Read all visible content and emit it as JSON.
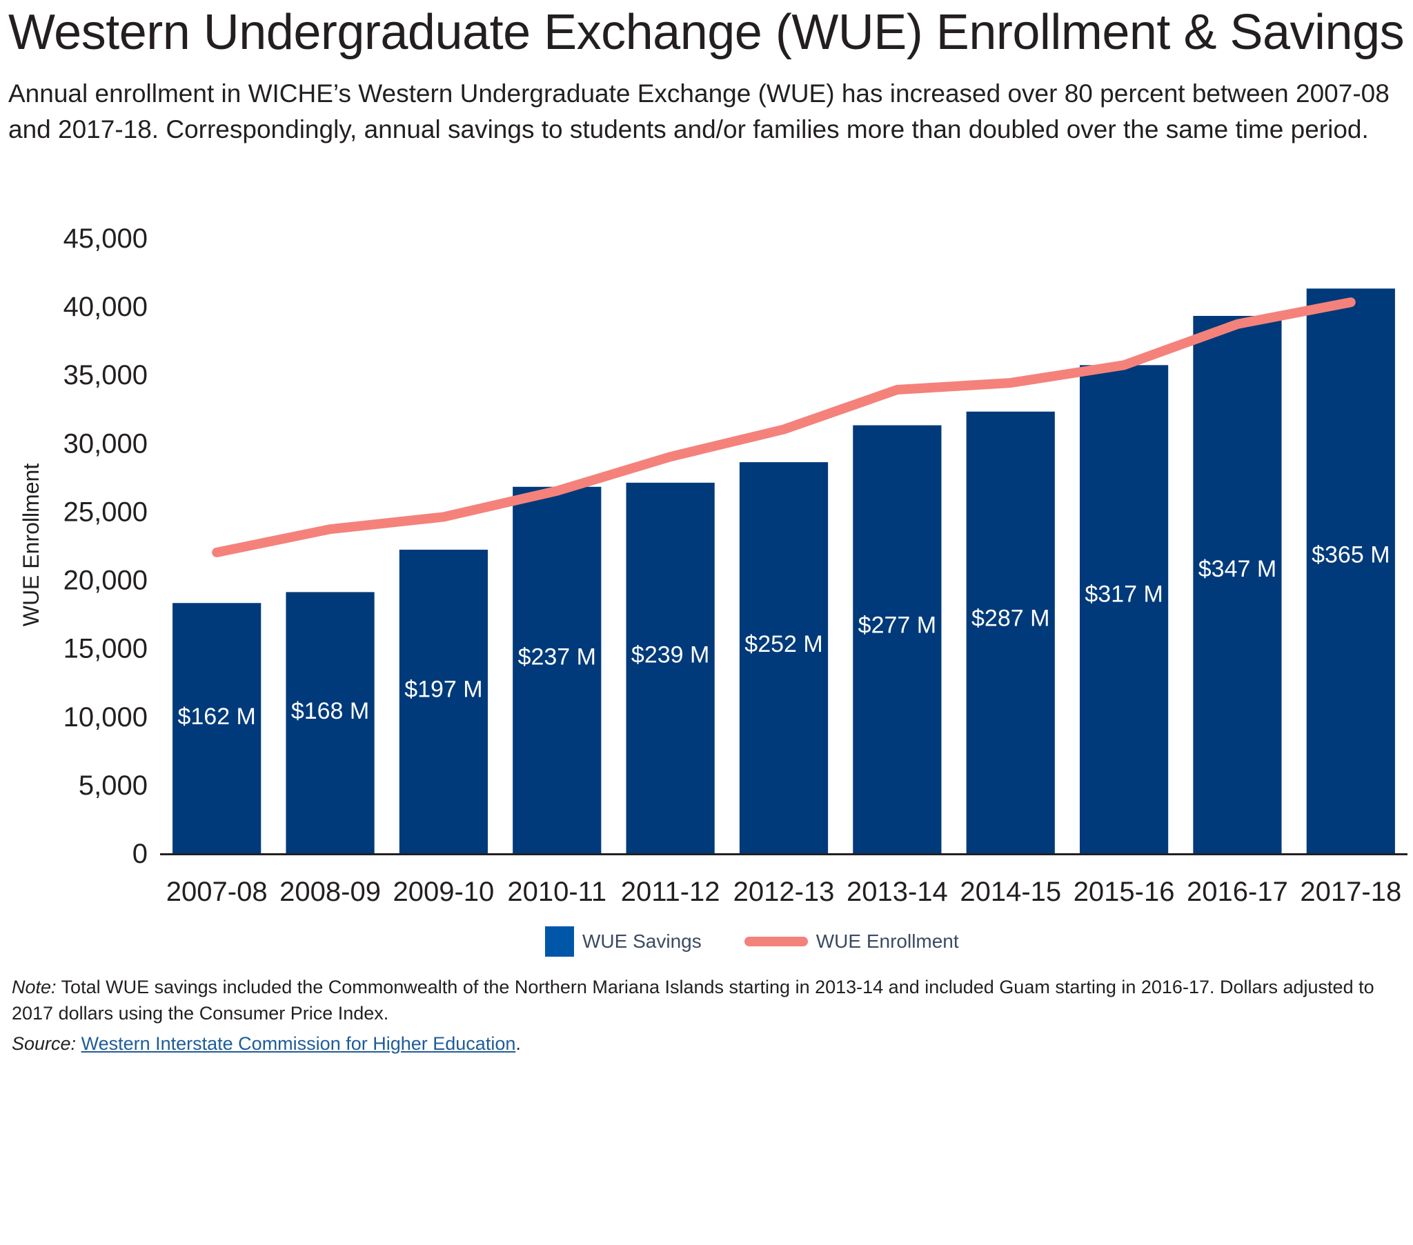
{
  "header": {
    "title": "Western Undergraduate Exchange (WUE) Enrollment & Savings",
    "subtitle": "Annual enrollment in WICHE’s Western Undergraduate Exchange (WUE) has increased over 80 percent between 2007-08 and 2017-18. Correspondingly, annual savings to students and/or families more than doubled over the same time period."
  },
  "chart_data": {
    "type": "bar",
    "categories": [
      "2007-08",
      "2008-09",
      "2009-10",
      "2010-11",
      "2011-12",
      "2012-13",
      "2013-14",
      "2014-15",
      "2015-16",
      "2016-17",
      "2017-18"
    ],
    "series": [
      {
        "name": "WUE Savings",
        "type": "bar",
        "color": "#003a7a",
        "values": [
          18300,
          19100,
          22200,
          26800,
          27100,
          28600,
          31300,
          32300,
          35700,
          39300,
          41300
        ],
        "data_labels": [
          "$162 M",
          "$168 M",
          "$197 M",
          "$237 M",
          "$239 M",
          "$252 M",
          "$277 M",
          "$287 M",
          "$317 M",
          "$347 M",
          "$365 M"
        ]
      },
      {
        "name": "WUE Enrollment",
        "type": "line",
        "color": "#f4827b",
        "values": [
          22000,
          23700,
          24600,
          26500,
          29000,
          31000,
          33900,
          34400,
          35700,
          38700,
          40300
        ]
      }
    ],
    "ylabel": "WUE Enrollment",
    "ylim": [
      0,
      45000
    ],
    "yticks": [
      0,
      5000,
      10000,
      15000,
      20000,
      25000,
      30000,
      35000,
      40000,
      45000
    ],
    "ytick_labels": [
      "0",
      "5,000",
      "10,000",
      "15,000",
      "20,000",
      "25,000",
      "30,000",
      "35,000",
      "40,000",
      "45,000"
    ],
    "legend_position": "bottom-center",
    "grid": false
  },
  "legend": {
    "savings_label": "WUE Savings",
    "enrollment_label": "WUE Enrollment",
    "savings_color": "#0057a8",
    "enrollment_color": "#f4827b"
  },
  "footer": {
    "note_prefix": "Note:",
    "note_text": " Total WUE savings included the Commonwealth of the Northern Mariana Islands starting in 2013-14 and included Guam starting in 2016-17. Dollars adjusted to 2017 dollars using the Consumer Price Index.",
    "source_prefix": "Source:",
    "source_link": "Western Interstate Commission for Higher Education",
    "source_suffix": "."
  }
}
